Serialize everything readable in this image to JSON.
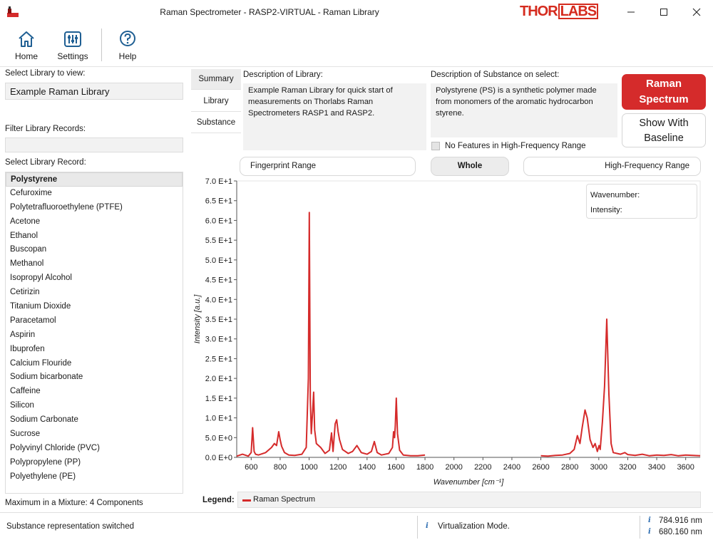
{
  "window": {
    "title": "Raman Spectrometer - RASP2-VIRTUAL - Raman Library",
    "logo_left": "THOR",
    "logo_box": "LABS",
    "minimize_icon": "minimize-icon",
    "maximize_icon": "maximize-icon",
    "close_icon": "close-icon"
  },
  "toolbar": {
    "home_label": "Home",
    "settings_label": "Settings",
    "help_label": "Help"
  },
  "left": {
    "library_label": "Select Library to view:",
    "library_value": "Example Raman Library",
    "filter_label": "Filter Library Records:",
    "filter_value": "",
    "record_label": "Select Library Record:",
    "records": [
      "Polystyrene",
      "Cefuroxime",
      "Polytetrafluoroethylene (PTFE)",
      "Acetone",
      "Ethanol",
      "Buscopan",
      "Methanol",
      "Isopropyl Alcohol",
      "Cetirizin",
      "Titanium Dioxide",
      "Paracetamol",
      "Aspirin",
      "Ibuprofen",
      "Calcium Flouride",
      "Sodium bicarbonate",
      "Caffeine",
      "Silicon",
      "Sodium Carbonate",
      "Sucrose",
      "Polyvinyl Chloride (PVC)",
      "Polypropylene (PP)",
      "Polyethylene (PE)"
    ],
    "selected_record": "Polystyrene",
    "mixture_note": "Maximum in a Mixture: 4 Components"
  },
  "tabs": [
    "Summary",
    "Library",
    "Substance"
  ],
  "active_tab": "Summary",
  "description": {
    "library_label": "Description of Library:",
    "library_text": "Example Raman Library for quick start of measurements on Thorlabs Raman Spectrometers RASP1 and RASP2.",
    "substance_label": "Description of Substance on select:",
    "substance_text": "Polystyrene (PS) is a synthetic polymer made from monomers of the aromatic hydrocarbon styrene."
  },
  "buttons": {
    "raman_line1": "Raman",
    "raman_line2": "Spectrum",
    "baseline_line1": "Show With",
    "baseline_line2": "Baseline",
    "high_freq_checkbox": "No Features in High-Frequency Range",
    "high_freq_checked": false,
    "range_fingerprint": "Fingerprint Range",
    "range_whole": "Whole",
    "range_high": "High-Frequency Range",
    "active_range": "Whole"
  },
  "readout": {
    "wavenumber_label": "Wavenumber:",
    "intensity_label": "Intensity:"
  },
  "legend": {
    "label": "Legend:",
    "series_name": "Raman Spectrum"
  },
  "status": {
    "message": "Substance representation switched",
    "mode": "Virtualization Mode.",
    "wavelength_1": "784.916 nm",
    "wavelength_2": "680.160 nm"
  },
  "colors": {
    "accent": "#d52b2b",
    "line": "#d52b2b",
    "selected_bg": "#e9e9e9",
    "field_bg": "#f2f2f2"
  },
  "chart_data": {
    "type": "line",
    "xlabel": "Wavenumber [cm⁻¹]",
    "ylabel": "Intensity [a.u.]",
    "xlim": [
      500,
      3700
    ],
    "ylim": [
      0,
      70
    ],
    "x_ticks": [
      600,
      800,
      1000,
      1200,
      1400,
      1600,
      1800,
      2000,
      2200,
      2400,
      2600,
      2800,
      3000,
      3200,
      3400,
      3600
    ],
    "y_ticks": [
      "0.0 E+0",
      "5.0 E+0",
      "1.0 E+1",
      "1.5 E+1",
      "2.0 E+1",
      "2.5 E+1",
      "3.0 E+1",
      "3.5 E+1",
      "4.0 E+1",
      "4.5 E+1",
      "5.0 E+1",
      "5.5 E+1",
      "6.0 E+1",
      "6.5 E+1",
      "7.0 E+1"
    ],
    "y_tick_values": [
      0,
      5,
      10,
      15,
      20,
      25,
      30,
      35,
      40,
      45,
      50,
      55,
      60,
      65,
      70
    ],
    "grid": false,
    "series": [
      {
        "name": "Raman Spectrum",
        "segments": [
          {
            "x": [
              500,
              540,
              580,
              600,
              610,
              620,
              630,
              650,
              700,
              740,
              760,
              775,
              790,
              800,
              810,
              830,
              860,
              900,
              950,
              980,
              995,
              1001,
              1008,
              1015,
              1025,
              1031,
              1038,
              1050,
              1080,
              1110,
              1140,
              1155,
              1165,
              1180,
              1190,
              1200,
              1210,
              1230,
              1270,
              1300,
              1330,
              1360,
              1400,
              1430,
              1450,
              1470,
              1500,
              1550,
              1575,
              1583,
              1590,
              1595,
              1602,
              1610,
              1625,
              1650,
              1700,
              1750,
              1800
            ],
            "y": [
              0.3,
              0.8,
              0.3,
              1.2,
              7.5,
              1.5,
              0.8,
              0.6,
              1.2,
              2.5,
              3.5,
              3.0,
              6.5,
              4.5,
              2.8,
              1.2,
              0.6,
              0.5,
              0.8,
              2.5,
              20,
              62,
              15,
              6,
              12,
              16.5,
              7,
              3.5,
              2.5,
              1.0,
              1.8,
              6.2,
              1.5,
              8.5,
              9.5,
              6.5,
              4.5,
              2.0,
              1.0,
              1.5,
              3.0,
              1.2,
              0.8,
              1.5,
              4.0,
              1.2,
              0.6,
              1.0,
              2.5,
              6.5,
              5.0,
              8.0,
              15,
              6.0,
              1.8,
              0.6,
              0.4,
              0.4,
              0.6
            ]
          },
          {
            "x": [
              2600,
              2650,
              2700,
              2750,
              2800,
              2830,
              2852,
              2870,
              2885,
              2905,
              2920,
              2940,
              2960,
              2975,
              2990,
              3002,
              3010,
              3025,
              3040,
              3055,
              3070,
              3085,
              3100,
              3150,
              3180,
              3200,
              3250,
              3300,
              3350,
              3400,
              3450,
              3500,
              3550,
              3600,
              3650,
              3700
            ],
            "y": [
              0.4,
              0.3,
              0.5,
              0.6,
              1.0,
              2.0,
              5.5,
              3.5,
              7.5,
              12,
              10,
              4.5,
              2.5,
              3.5,
              1.5,
              3.0,
              2.0,
              9.0,
              18,
              35,
              16,
              3.5,
              1.2,
              0.8,
              1.2,
              0.7,
              0.5,
              0.8,
              0.4,
              0.6,
              0.5,
              0.7,
              0.4,
              0.6,
              0.5,
              0.4
            ]
          }
        ]
      }
    ]
  }
}
